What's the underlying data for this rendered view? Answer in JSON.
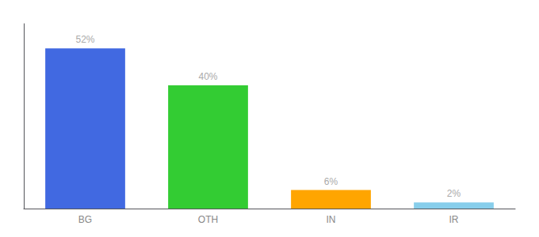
{
  "chart_data": {
    "type": "bar",
    "categories": [
      "BG",
      "OTH",
      "IN",
      "IR"
    ],
    "values": [
      52,
      40,
      6,
      2
    ],
    "value_labels": [
      "52%",
      "40%",
      "6%",
      "2%"
    ],
    "colors": [
      "#4169e1",
      "#33cc33",
      "#ffa500",
      "#87ceeb"
    ],
    "ylim": [
      0,
      60
    ],
    "data_labels": true,
    "tick_labels": "x",
    "grid": false
  }
}
